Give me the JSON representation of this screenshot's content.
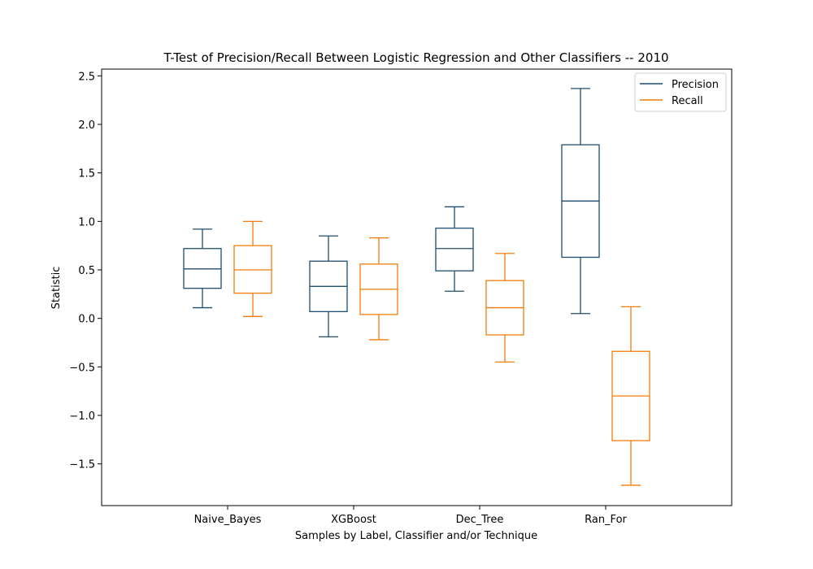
{
  "chart_data": {
    "type": "box",
    "title": "T-Test of Precision/Recall Between Logistic Regression and Other Classifiers -- 2010",
    "xlabel": "Samples by Label, Classifier and/or Technique",
    "ylabel": "Statistic",
    "ylim": [
      -1.93,
      2.57
    ],
    "yticks": [
      -1.5,
      -1.0,
      -0.5,
      0.0,
      0.5,
      1.0,
      1.5,
      2.0,
      2.5
    ],
    "ytick_labels": [
      "−1.5",
      "−1.0",
      "−0.5",
      "0.0",
      "0.5",
      "1.0",
      "1.5",
      "2.0",
      "2.5"
    ],
    "categories": [
      "Naive_Bayes",
      "XGBoost",
      "Dec_Tree",
      "Ran_For"
    ],
    "legend_position": "top-right",
    "grid": false,
    "series": [
      {
        "name": "Precision",
        "color": "#1f4e6e",
        "boxes": [
          {
            "whisker_low": 0.11,
            "q1": 0.31,
            "median": 0.51,
            "q3": 0.72,
            "whisker_high": 0.92
          },
          {
            "whisker_low": -0.19,
            "q1": 0.07,
            "median": 0.33,
            "q3": 0.59,
            "whisker_high": 0.85
          },
          {
            "whisker_low": 0.28,
            "q1": 0.49,
            "median": 0.72,
            "q3": 0.93,
            "whisker_high": 1.15
          },
          {
            "whisker_low": 0.05,
            "q1": 0.63,
            "median": 1.21,
            "q3": 1.79,
            "whisker_high": 2.37
          }
        ]
      },
      {
        "name": "Recall",
        "color": "#f07d0a",
        "boxes": [
          {
            "whisker_low": 0.02,
            "q1": 0.26,
            "median": 0.5,
            "q3": 0.75,
            "whisker_high": 1.0
          },
          {
            "whisker_low": -0.22,
            "q1": 0.04,
            "median": 0.3,
            "q3": 0.56,
            "whisker_high": 0.83
          },
          {
            "whisker_low": -0.45,
            "q1": -0.17,
            "median": 0.11,
            "q3": 0.39,
            "whisker_high": 0.67
          },
          {
            "whisker_low": -1.72,
            "q1": -1.26,
            "median": -0.8,
            "q3": -0.34,
            "whisker_high": 0.12
          }
        ]
      }
    ]
  }
}
